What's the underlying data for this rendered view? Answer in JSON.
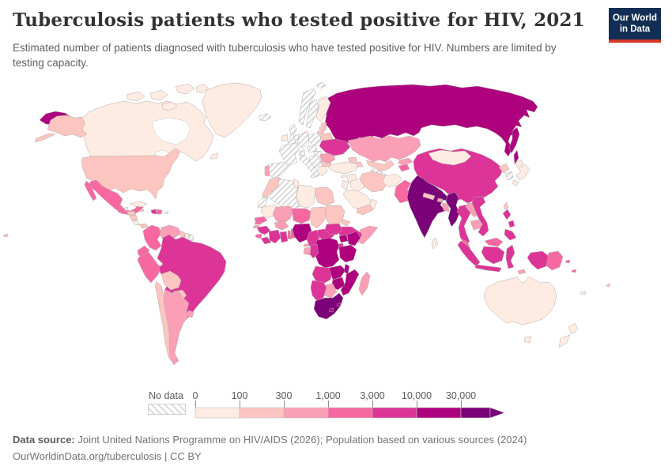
{
  "header": {
    "title": "Tuberculosis patients who tested positive for HIV, 2021",
    "subtitle": "Estimated number of patients diagnosed with tuberculosis who have tested positive for HIV. Numbers are limited by testing capacity.",
    "logo": {
      "line1": "Our World",
      "line2": "in Data",
      "bg_color": "#132e54",
      "accent_color": "#d8352a"
    }
  },
  "footer": {
    "source_label": "Data source:",
    "source_text": " Joint United Nations Programme on HIV/AIDS (2026); Population based on various sources (2024)",
    "link_line": "OurWorldinData.org/tuberculosis | CC BY"
  },
  "chart_data": {
    "type": "choropleth_map",
    "title": "Tuberculosis patients who tested positive for HIV",
    "year": "2021",
    "unit": "patients",
    "legend": {
      "no_data_label": "No data",
      "tick_labels": [
        "0",
        "100",
        "300",
        "1,000",
        "3,000",
        "10,000",
        "30,000"
      ],
      "bin_ranges": [
        "0-100",
        "100-300",
        "300-1,000",
        "1,000-3,000",
        "3,000-10,000",
        "10,000-30,000",
        "30,000+"
      ],
      "bin_colors": [
        "#feebe2",
        "#fcc5c0",
        "#fa9fb5",
        "#f768a1",
        "#dd3497",
        "#ae017e",
        "#7a0177"
      ],
      "open_ended_arrow": true,
      "no_data_stripe_color": "#d9d9d9"
    },
    "countries": {
      "canada": 0,
      "greenland": 0,
      "usa": 1,
      "hawaii": 1,
      "mexico": 3,
      "guatemala": 3,
      "belize": 0,
      "honduras": 1,
      "nicaragua": 1,
      "costa_rica": 0,
      "panama": 1,
      "cuba": 0,
      "jamaica": 1,
      "haiti": 4,
      "dominican_republic": 3,
      "puerto_rico": 0,
      "colombia": 3,
      "venezuela": 2,
      "guyana": 1,
      "suriname": 0,
      "french_guiana": "nd",
      "ecuador": 3,
      "peru": 3,
      "brazil": 4,
      "bolivia": 1,
      "paraguay": 1,
      "chile": 1,
      "argentina": 2,
      "uruguay": 2,
      "iceland": "nd",
      "ireland": 0,
      "uk": "nd",
      "norway": "nd",
      "sweden": "nd",
      "finland": 0,
      "denmark": 0,
      "estonia": 1,
      "latvia": 1,
      "lithuania": 1,
      "belarus": 1,
      "poland": "nd",
      "germany": "nd",
      "benelux": "nd",
      "france": "nd",
      "switzerland": "nd",
      "central_europe": "nd",
      "hungary": "nd",
      "balkans": "nd",
      "italy": "nd",
      "spain": "nd",
      "portugal": 2,
      "greece": 0,
      "bulgaria": 1,
      "romania": 2,
      "moldova": 2,
      "ukraine": 4,
      "russia": 5,
      "svalbard": "nd",
      "kazakhstan": 2,
      "uzbekistan": 1,
      "turkmenistan": "nd",
      "kyrgyzstan": 2,
      "tajikistan": 3,
      "georgia": 1,
      "caucasus": 1,
      "turkey": 0,
      "cyprus": 0,
      "syria": 0,
      "levant": 0,
      "iraq": 0,
      "saudi_arabia": 0,
      "yemen": 1,
      "oman": 0,
      "iran": 1,
      "afghanistan": 0,
      "pakistan": 3,
      "india": 6,
      "nepal": 1,
      "bhutan": 2,
      "bangladesh": 2,
      "sri_lanka": 0,
      "china": 4,
      "mongolia": 0,
      "north_korea": 1,
      "south_korea": "nd",
      "japan": 0,
      "taiwan": 1,
      "myanmar": 6,
      "thailand": 4,
      "laos": 2,
      "cambodia": 2,
      "vietnam": 4,
      "malaysia": 3,
      "indonesia": 4,
      "timor": 2,
      "png": 3,
      "philippines": 4,
      "solomon": 3,
      "fiji": 1,
      "new_caledonia": 0,
      "australia": 0,
      "new_zealand": 0,
      "morocco": 1,
      "western_sahara": "nd",
      "algeria": "nd",
      "tunisia": 0,
      "libya": 0,
      "egypt": 1,
      "mauritania": 0,
      "mali": 2,
      "niger": 3,
      "chad": 1,
      "sudan": 1,
      "eritrea": 1,
      "djibouti": 2,
      "ethiopia": 4,
      "somalia": 2,
      "senegal": 3,
      "gambia": 3,
      "guinea_bissau": 2,
      "guinea": 4,
      "sierra_leone": 3,
      "liberia": 4,
      "cote_divoire": 4,
      "ghana": 4,
      "togo": 3,
      "benin": 3,
      "burkina_faso": 2,
      "nigeria": 5,
      "cameroon": 4,
      "central_african_republic": 4,
      "south_sudan": 4,
      "uganda": 5,
      "kenya": 5,
      "rwanda_burundi": 4,
      "drc": 5,
      "congo": 4,
      "gabon": 2,
      "equatorial_guinea": 2,
      "tanzania": 5,
      "angola": 4,
      "zambia": 5,
      "malawi": 5,
      "mozambique": 5,
      "zimbabwe": 5,
      "botswana": 2,
      "namibia": 4,
      "south_africa": 6,
      "lesotho": 5,
      "eswatini": 5,
      "madagascar": 2
    }
  }
}
